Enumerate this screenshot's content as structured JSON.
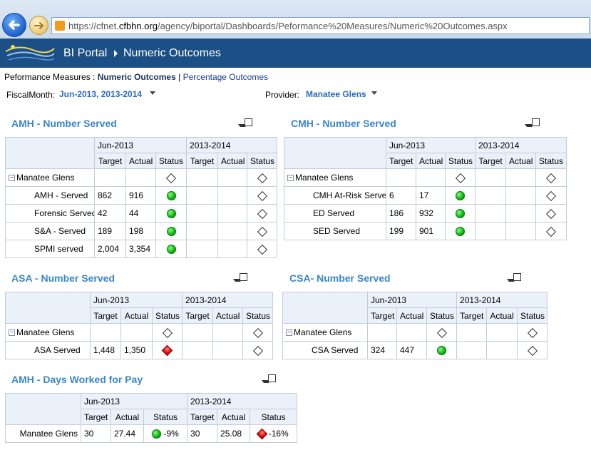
{
  "browser": {
    "url_prefix": "https://cfnet.",
    "url_domain": "cfbhn.org",
    "url_path": "/agency/biportal/Dashboards/Peformance%20Measures/Numeric%20Outcomes.aspx"
  },
  "header": {
    "portal": "BI Portal",
    "page": "Numeric Outcomes"
  },
  "crumbs": {
    "prefix": "Peformance Measures :",
    "active": "Numeric Outcomes",
    "sep": "|",
    "link": "Percentage Outcomes"
  },
  "filters": {
    "month_label": "FiscalMonth:",
    "month_value": "Jun-2013, 2013-2014",
    "provider_label": "Provider:",
    "provider_value": "Manatee Glens"
  },
  "cols": {
    "p1": "Jun-2013",
    "p2": "2013-2014",
    "target": "Target",
    "actual": "Actual",
    "status": "Status"
  },
  "amh": {
    "title": "AMH - Number Served",
    "group": "Manatee Glens",
    "rows": [
      {
        "name": "AMH - Served",
        "t1": "862",
        "a1": "916"
      },
      {
        "name": "Forensic Served",
        "t1": "42",
        "a1": "44"
      },
      {
        "name": "S&A - Served",
        "t1": "189",
        "a1": "198"
      },
      {
        "name": "SPMI served",
        "t1": "2,004",
        "a1": "3,354"
      }
    ]
  },
  "cmh": {
    "title": "CMH - Number Served",
    "group": "Manatee Glens",
    "rows": [
      {
        "name": "CMH At-Risk Served",
        "t1": "6",
        "a1": "17"
      },
      {
        "name": "ED Served",
        "t1": "186",
        "a1": "932"
      },
      {
        "name": "SED Served",
        "t1": "199",
        "a1": "901"
      }
    ]
  },
  "asa": {
    "title": "ASA - Number Served",
    "group": "Manatee Glens",
    "row": {
      "name": "ASA Served",
      "t1": "1,448",
      "a1": "1,350"
    }
  },
  "csa": {
    "title": "CSA- Number Served",
    "group": "Manatee Glens",
    "row": {
      "name": "CSA Served",
      "t1": "324",
      "a1": "447"
    }
  },
  "days": {
    "title": "AMH - Days Worked for Pay",
    "row": {
      "name": "Manatee Glens",
      "t1": "30",
      "a1": "27.44",
      "s1": "-9%",
      "t2": "30",
      "a2": "25.08",
      "s2": "-16%"
    }
  },
  "colors": {
    "header_bg": "#1b4f86",
    "title_blue": "#3b87c9",
    "green": "#10b010",
    "red": "#e01010"
  }
}
